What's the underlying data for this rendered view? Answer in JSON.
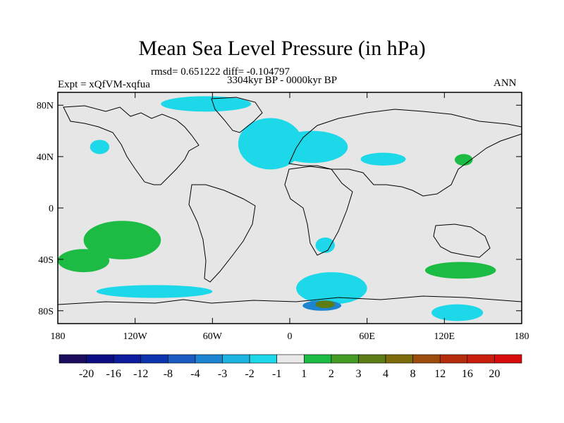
{
  "chart_data": {
    "type": "heatmap",
    "title": "Mean Sea Level Pressure (in hPa)",
    "subtitle": "rmsd= 0.651222 diff= -0.104797",
    "period": "3304kyr BP - 0000kyr BP",
    "experiment": "Expt = xQfVM-xqfua",
    "season": "ANN",
    "x_ticks": [
      "180",
      "120W",
      "60W",
      "0",
      "60E",
      "120E",
      "180"
    ],
    "x_tick_values": [
      -180,
      -120,
      -60,
      0,
      60,
      120,
      180
    ],
    "y_ticks": [
      "80N",
      "40N",
      "0",
      "40S",
      "80S"
    ],
    "y_tick_values": [
      80,
      40,
      0,
      -40,
      -80
    ],
    "xlim": [
      -180,
      180
    ],
    "ylim": [
      -90,
      90
    ],
    "colorbar": {
      "labels": [
        "-20",
        "-16",
        "-12",
        "-8",
        "-4",
        "-3",
        "-2",
        "-1",
        "1",
        "2",
        "3",
        "4",
        "8",
        "12",
        "16",
        "20"
      ],
      "colors": [
        "#1b0c5e",
        "#0c0c84",
        "#0c1c9c",
        "#0c34ac",
        "#1c5cc0",
        "#1c84d0",
        "#1cb4e0",
        "#1cd8e8",
        "#e8e8e8",
        "#1cbc44",
        "#449c24",
        "#5c7c14",
        "#7c6c0c",
        "#9c4c0c",
        "#b42c0c",
        "#c81c0c",
        "#d80c0c"
      ]
    },
    "regions": [
      {
        "name": "north-atlantic-low",
        "bin": "-2..-1",
        "lon": [
          -40,
          10
        ],
        "lat": [
          30,
          70
        ]
      },
      {
        "name": "europe-low",
        "bin": "-2..-1",
        "lon": [
          -10,
          45
        ],
        "lat": [
          35,
          60
        ]
      },
      {
        "name": "arctic-low",
        "bin": "-2..-1",
        "lon": [
          -100,
          -30
        ],
        "lat": [
          75,
          87
        ]
      },
      {
        "name": "north-pacific-low",
        "bin": "-2..-1",
        "lon": [
          -155,
          -140
        ],
        "lat": [
          42,
          53
        ]
      },
      {
        "name": "central-asia-low",
        "bin": "-2..-1",
        "lon": [
          55,
          90
        ],
        "lat": [
          33,
          43
        ]
      },
      {
        "name": "south-africa-low",
        "bin": "-2..-1",
        "lon": [
          20,
          35
        ],
        "lat": [
          -23,
          -35
        ]
      },
      {
        "name": "southern-ocean-low-pacific",
        "bin": "-2..-1",
        "lon": [
          -150,
          -60
        ],
        "lat": [
          -60,
          -70
        ]
      },
      {
        "name": "southern-ocean-low-atlantic",
        "bin": "-2..-1",
        "lon": [
          5,
          60
        ],
        "lat": [
          -50,
          -75
        ]
      },
      {
        "name": "east-antarctica-low",
        "bin": "-2..-1",
        "lon": [
          110,
          150
        ],
        "lat": [
          -75,
          -88
        ]
      },
      {
        "name": "south-pacific-high",
        "bin": "1..2",
        "lon": [
          -160,
          -100
        ],
        "lat": [
          -10,
          -40
        ]
      },
      {
        "name": "southeast-pacific-high",
        "bin": "1..2",
        "lon": [
          -180,
          -140
        ],
        "lat": [
          -32,
          -50
        ]
      },
      {
        "name": "australia-south-high",
        "bin": "1..2",
        "lon": [
          105,
          160
        ],
        "lat": [
          -42,
          -55
        ]
      },
      {
        "name": "japan-high",
        "bin": "1..2",
        "lon": [
          128,
          142
        ],
        "lat": [
          33,
          42
        ]
      },
      {
        "name": "antarctic-coast-low",
        "bin": "-4..-3",
        "lon": [
          10,
          40
        ],
        "lat": [
          -72,
          -80
        ]
      },
      {
        "name": "antarctic-coast-high",
        "bin": "3..4",
        "lon": [
          20,
          35
        ],
        "lat": [
          -72,
          -78
        ]
      }
    ]
  }
}
